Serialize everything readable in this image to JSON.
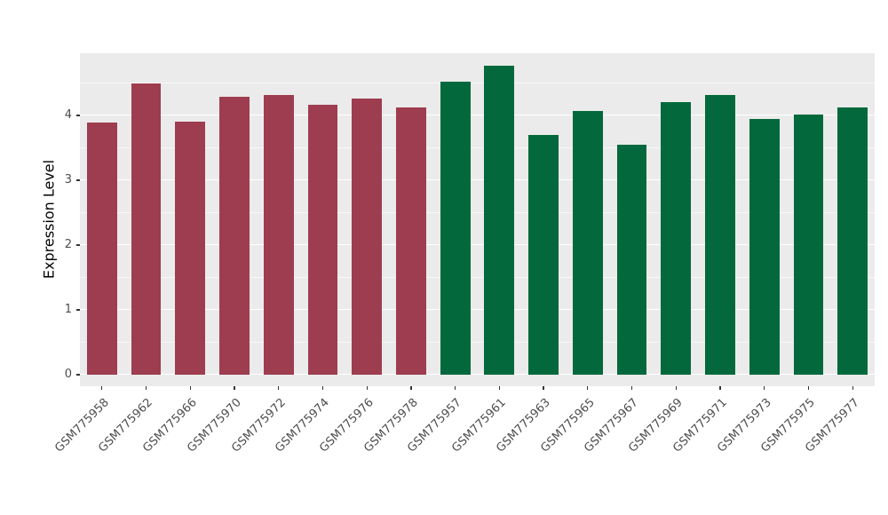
{
  "chart_data": {
    "type": "bar",
    "title": "",
    "xlabel": "",
    "ylabel": "Expression Level",
    "ylim": [
      0,
      5
    ],
    "yticks": [
      0,
      1,
      2,
      3,
      4
    ],
    "yticks_minor": [
      0.5,
      1.5,
      2.5,
      3.5,
      4.5
    ],
    "grid": "major and minor horizontal, white on gray panel",
    "legend_position": "none",
    "categories": [
      "GSM775958",
      "GSM775962",
      "GSM775966",
      "GSM775970",
      "GSM775972",
      "GSM775974",
      "GSM775976",
      "GSM775978",
      "GSM775957",
      "GSM775961",
      "GSM775963",
      "GSM775965",
      "GSM775967",
      "GSM775969",
      "GSM775971",
      "GSM775973",
      "GSM775975",
      "GSM775977"
    ],
    "values": [
      3.89,
      4.5,
      3.91,
      4.29,
      4.31,
      4.16,
      4.26,
      4.13,
      4.52,
      4.77,
      3.7,
      4.07,
      3.55,
      4.2,
      4.31,
      3.94,
      4.01,
      4.12
    ],
    "groups": [
      0,
      0,
      0,
      0,
      0,
      0,
      0,
      0,
      1,
      1,
      1,
      1,
      1,
      1,
      1,
      1,
      1,
      1
    ],
    "group_colors": [
      "#9E3D4F",
      "#03693C"
    ],
    "panel_background": "#EBEBEB",
    "gridline_color": "#FFFFFF",
    "tick_text_color": "#4D4D4D"
  }
}
